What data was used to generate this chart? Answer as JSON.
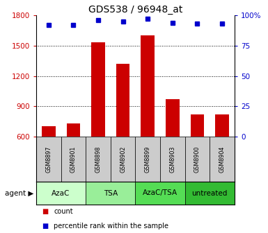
{
  "title": "GDS538 / 96948_at",
  "samples": [
    "GSM8897",
    "GSM8901",
    "GSM8898",
    "GSM8902",
    "GSM8899",
    "GSM8903",
    "GSM8900",
    "GSM8904"
  ],
  "counts": [
    700,
    730,
    1530,
    1320,
    1600,
    970,
    820,
    820
  ],
  "percentiles": [
    92,
    92,
    96,
    95,
    97,
    94,
    93,
    93
  ],
  "ylim_left": [
    600,
    1800
  ],
  "ylim_right": [
    0,
    100
  ],
  "yticks_left": [
    600,
    900,
    1200,
    1500,
    1800
  ],
  "yticks_right": [
    0,
    25,
    50,
    75,
    100
  ],
  "bar_color": "#cc0000",
  "dot_color": "#0000cc",
  "groups": [
    {
      "label": "AzaC",
      "indices": [
        0,
        1
      ],
      "color": "#ccffcc"
    },
    {
      "label": "TSA",
      "indices": [
        2,
        3
      ],
      "color": "#99ee99"
    },
    {
      "label": "AzaC/TSA",
      "indices": [
        4,
        5
      ],
      "color": "#55dd55"
    },
    {
      "label": "untreated",
      "indices": [
        6,
        7
      ],
      "color": "#33bb33"
    }
  ],
  "tick_color_left": "#cc0000",
  "tick_color_right": "#0000cc",
  "grid_color": "#000000",
  "bg_color": "#ffffff",
  "sample_row_color": "#cccccc",
  "agent_label": "agent",
  "legend_count": "count",
  "legend_pct": "percentile rank within the sample"
}
